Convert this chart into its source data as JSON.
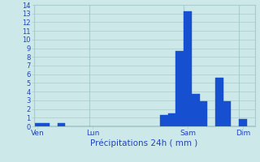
{
  "title": "",
  "xlabel": "Précipitations 24h ( mm )",
  "ylabel": "",
  "background_color": "#cce8e8",
  "bar_color": "#1650d0",
  "bar_edge_color": "#1650d0",
  "ylim": [
    0,
    14
  ],
  "yticks": [
    0,
    1,
    2,
    3,
    4,
    5,
    6,
    7,
    8,
    9,
    10,
    11,
    12,
    13,
    14
  ],
  "grid_color": "#aacccc",
  "tick_label_color": "#2244bb",
  "xlabel_color": "#2244bb",
  "num_bars": 28,
  "values": [
    0.4,
    0.4,
    0,
    0.4,
    0,
    0,
    0,
    0,
    0,
    0,
    0,
    0,
    0,
    0,
    0,
    0,
    1.3,
    1.5,
    8.7,
    13.3,
    3.7,
    2.9,
    0,
    5.6,
    2.9,
    0,
    0.8,
    0
  ],
  "day_labels": [
    "Ven",
    "Lun",
    "Sam",
    "Dim"
  ],
  "day_bar_indices": [
    0,
    7,
    19,
    26
  ]
}
